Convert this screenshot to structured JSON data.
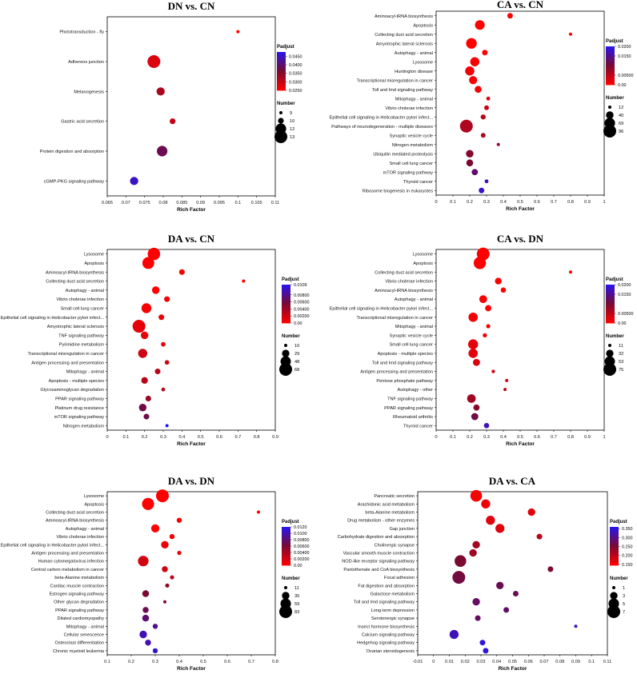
{
  "chart_data": [
    {
      "type": "scatter",
      "title": "DN vs. CN",
      "xlabel": "Rich Factor",
      "xlim": [
        0.065,
        0.11
      ],
      "xticks": [
        "0.065",
        "0.07",
        "0.075",
        "0.08",
        "0.085",
        "0.09",
        "0.095",
        "0.1",
        "0.105",
        "0.11"
      ],
      "categories": [
        "Phototransduction - fly",
        "Adherens junction",
        "Melanogenesis",
        "Gastric acid secretion",
        "Protein digestion and absorption",
        "cGMP-PKG signaling pathway"
      ],
      "x": [
        0.1,
        0.0775,
        0.0793,
        0.0825,
        0.0797,
        0.0722
      ],
      "size": [
        9,
        13,
        11,
        10,
        12,
        11
      ],
      "padj": [
        0.025,
        0.028,
        0.032,
        0.03,
        0.038,
        0.045
      ],
      "legend": {
        "color_title": "Padjust",
        "color_range": [
          0.025,
          0.0475
        ],
        "color_ticks": [
          "0.0450",
          "0.0400",
          "0.0350",
          "0.0300",
          "0.0250"
        ],
        "color_tick_values": [
          0.045,
          0.04,
          0.035,
          0.03,
          0.025
        ],
        "size_title": "Number",
        "size_values": [
          9,
          10,
          12,
          13
        ],
        "size_labels": [
          "9",
          "10",
          "12",
          "13"
        ]
      }
    },
    {
      "type": "scatter",
      "title": "CA vs. CN",
      "xlabel": "Rich Factor",
      "xlim": [
        0,
        1
      ],
      "xticks": [
        "0",
        "0.1",
        "0.2",
        "0.3",
        "0.4",
        "0.5",
        "0.6",
        "0.7",
        "0.8",
        "0.9",
        "1"
      ],
      "categories": [
        "Aminoacyl-tRNA biosynthesis",
        "Apoptosis",
        "Collecting duct acid secretion",
        "Amyotrophic lateral sclerosis",
        "Autophagy - animal",
        "Lysosome",
        "Huntington disease",
        "Transcriptional misregulation in cancer",
        "Toll and Imd signaling pathway",
        "Mitophagy - animal",
        "Vibrio cholerae infection",
        "Epithelial cell signaling in Helicobacter pylori infect...",
        "Pathways of neurodegeneration - multiple diseases",
        "Synaptic vesicle cycle",
        "Nitrogen metabolism",
        "Ubiquitin mediated proteolysis",
        "Small cell lung cancer",
        "mTOR signaling pathway",
        "Thyroid cancer",
        "Ribosome biogenesis in eukaryotes"
      ],
      "x": [
        0.44,
        0.26,
        0.8,
        0.21,
        0.29,
        0.23,
        0.2,
        0.22,
        0.25,
        0.31,
        0.3,
        0.28,
        0.18,
        0.28,
        0.37,
        0.2,
        0.2,
        0.23,
        0.3,
        0.27
      ],
      "size": [
        25,
        60,
        12,
        70,
        25,
        55,
        55,
        45,
        35,
        15,
        20,
        22,
        96,
        20,
        12,
        40,
        35,
        30,
        15,
        25
      ],
      "padj": [
        0.0,
        0.0,
        0.0,
        0.0,
        0.0,
        0.0005,
        0.001,
        0.0005,
        0.001,
        0.003,
        0.004,
        0.005,
        0.006,
        0.006,
        0.008,
        0.009,
        0.01,
        0.013,
        0.017,
        0.018
      ],
      "legend": {
        "color_title": "Padjust",
        "color_range": [
          0,
          0.02
        ],
        "color_ticks": [
          "0.0200",
          "0.0150",
          "0.00500",
          "0.00"
        ],
        "color_tick_values": [
          0.02,
          0.015,
          0.005,
          0.0
        ],
        "size_title": "Number",
        "size_values": [
          12,
          40,
          69,
          96
        ],
        "size_labels": [
          "12",
          "40",
          "69",
          "96"
        ]
      }
    },
    {
      "type": "scatter",
      "title": "DA vs. CN",
      "xlabel": "Rich Factor",
      "xlim": [
        0,
        0.9
      ],
      "xticks": [
        "0",
        "0.1",
        "0.2",
        "0.3",
        "0.4",
        "0.5",
        "0.6",
        "0.7",
        "0.8",
        "0.9"
      ],
      "categories": [
        "Lysosome",
        "Apoptosis",
        "Aminoacyl-tRNA biosynthesis",
        "Collecting duct acid secretion",
        "Autophagy - animal",
        "Vibrio cholerae infection",
        "Small cell lung cancer",
        "Epithelial cell signaling in Helicobacter pylori infect...",
        "Amyotrophic lateral sclerosis",
        "TNF signaling pathway",
        "Pyrimidine metabolism",
        "Transcriptional misregulation in cancer",
        "Antigen processing and presentation",
        "Mitophagy - animal",
        "Apoptosis - multiple species",
        "Glycosaminoglycan degradation",
        "PPAR signaling pathway",
        "Platinum drug resistance",
        "mTOR signaling pathway",
        "Nitrogen metabolism"
      ],
      "x": [
        0.25,
        0.22,
        0.4,
        0.73,
        0.26,
        0.32,
        0.21,
        0.29,
        0.17,
        0.2,
        0.3,
        0.19,
        0.32,
        0.27,
        0.2,
        0.3,
        0.22,
        0.19,
        0.21,
        0.32
      ],
      "size": [
        65,
        60,
        20,
        10,
        30,
        20,
        45,
        20,
        68,
        30,
        15,
        40,
        15,
        20,
        25,
        12,
        20,
        30,
        20,
        10
      ],
      "padj": [
        0.0,
        0.0,
        0.0,
        0.0,
        0.0,
        0.0005,
        0.0005,
        0.001,
        0.001,
        0.001,
        0.001,
        0.002,
        0.002,
        0.003,
        0.003,
        0.003,
        0.004,
        0.006,
        0.006,
        0.011
      ],
      "legend": {
        "color_title": "Padjust",
        "color_range": [
          0,
          0.0109
        ],
        "color_ticks": [
          "0.0109",
          "0.00800",
          "0.00600",
          "0.00400",
          "0.00200",
          "0.00"
        ],
        "color_tick_values": [
          0.0109,
          0.008,
          0.006,
          0.004,
          0.002,
          0.0
        ],
        "size_title": "Number",
        "size_values": [
          10,
          29,
          48,
          68
        ],
        "size_labels": [
          "10",
          "29",
          "48",
          "68"
        ]
      }
    },
    {
      "type": "scatter",
      "title": "CA vs. DN",
      "xlabel": "Rich Factor",
      "xlim": [
        0,
        1
      ],
      "xticks": [
        "0",
        "0.1",
        "0.2",
        "0.3",
        "0.4",
        "0.5",
        "0.6",
        "0.7",
        "0.8",
        "0.9",
        "1"
      ],
      "categories": [
        "Lysosome",
        "Apoptosis",
        "Collecting duct acid secretion",
        "Vibrio cholerae infection",
        "Aminoacyl-tRNA biosynthesis",
        "Autophagy - animal",
        "Epithelial cell signaling in Helicobacter pylori infect...",
        "Transcriptional misregulation in cancer",
        "Mitophagy - animal",
        "Synaptic vesicle cycle",
        "Small cell lung cancer",
        "Apoptosis - multiple species",
        "Toll and Imd signaling pathway",
        "Antigen processing and presentation",
        "Pentose phosphate pathway",
        "Autophagy - other",
        "TNF signaling pathway",
        "PPAR signaling pathway",
        "Rheumatoid arthritis",
        "Thyroid cancer"
      ],
      "x": [
        0.28,
        0.26,
        0.8,
        0.37,
        0.4,
        0.28,
        0.31,
        0.22,
        0.31,
        0.29,
        0.22,
        0.22,
        0.24,
        0.34,
        0.42,
        0.41,
        0.21,
        0.24,
        0.23,
        0.3
      ],
      "size": [
        75,
        70,
        11,
        28,
        20,
        35,
        25,
        45,
        15,
        15,
        50,
        45,
        30,
        12,
        11,
        11,
        40,
        25,
        30,
        20
      ],
      "padj": [
        0.0,
        0.0,
        0.0,
        0.0,
        0.0,
        0.0005,
        0.0005,
        0.001,
        0.001,
        0.001,
        0.002,
        0.002,
        0.003,
        0.004,
        0.004,
        0.005,
        0.007,
        0.009,
        0.011,
        0.017
      ],
      "legend": {
        "color_title": "Padjust",
        "color_range": [
          0,
          0.02
        ],
        "color_ticks": [
          "0.0200",
          "0.0150",
          "0.00500",
          "0.00"
        ],
        "color_tick_values": [
          0.02,
          0.015,
          0.005,
          0.0
        ],
        "size_title": "Number",
        "size_values": [
          11,
          32,
          53,
          75
        ],
        "size_labels": [
          "11",
          "32",
          "53",
          "75"
        ]
      }
    },
    {
      "type": "scatter",
      "title": "DA vs. DN",
      "xlabel": "Rich Factor",
      "xlim": [
        0.1,
        0.8
      ],
      "xticks": [
        "0.1",
        "0.2",
        "0.3",
        "0.4",
        "0.5",
        "0.6",
        "0.7",
        "0.8"
      ],
      "categories": [
        "Lysosome",
        "Apoptosis",
        "Collecting duct acid secretion",
        "Aminoacyl-tRNA biosynthesis",
        "Autophagy - animal",
        "Vibrio cholerae infection",
        "Epithelial cell signaling in Helicobacter pylori infect...",
        "Antigen processing and presentation",
        "Human cytomegalovirus infection",
        "Central carbon metabolism in cancer",
        "beta-Alanine metabolism",
        "Cardiac muscle contraction",
        "Estrogen signaling pathway",
        "Other glycan degradation",
        "PPAR signaling pathway",
        "Dilated cardiomyopathy",
        "Mitophagy - animal",
        "Cellular senescence",
        "Osteoclast differentiation",
        "Chronic myeloid leukemia"
      ],
      "x": [
        0.33,
        0.27,
        0.73,
        0.4,
        0.3,
        0.37,
        0.34,
        0.4,
        0.25,
        0.34,
        0.37,
        0.35,
        0.26,
        0.34,
        0.26,
        0.26,
        0.3,
        0.25,
        0.27,
        0.3
      ],
      "size": [
        83,
        75,
        11,
        20,
        40,
        20,
        35,
        15,
        60,
        25,
        15,
        15,
        30,
        11,
        25,
        30,
        20,
        35,
        25,
        20
      ],
      "padj": [
        0.0,
        0.0,
        0.0,
        0.0,
        0.0,
        0.0005,
        0.001,
        0.001,
        0.002,
        0.002,
        0.003,
        0.005,
        0.006,
        0.006,
        0.007,
        0.008,
        0.009,
        0.01,
        0.01,
        0.011
      ],
      "legend": {
        "color_title": "Padjust",
        "color_range": [
          0,
          0.012
        ],
        "color_ticks": [
          "0.0120",
          "0.0100",
          "0.00800",
          "0.00600",
          "0.00400",
          "0.00200",
          "0.00"
        ],
        "color_tick_values": [
          0.012,
          0.01,
          0.008,
          0.006,
          0.004,
          0.002,
          0.0
        ],
        "size_title": "Number",
        "size_values": [
          11,
          35,
          59,
          83
        ],
        "size_labels": [
          "11",
          "35",
          "59",
          "83"
        ]
      }
    },
    {
      "type": "scatter",
      "title": "DA vs. CA",
      "xlabel": "Rich Factor",
      "xlim": [
        -0.01,
        0.11
      ],
      "xticks": [
        "-0.01",
        "0",
        "0.01",
        "0.02",
        "0.03",
        "0.04",
        "0.05",
        "0.06",
        "0.07",
        "0.08",
        "0.09",
        "0.1",
        "0.11"
      ],
      "categories": [
        "Pancreatic secretion",
        "Arachidonic acid metabolism",
        "beta-Alanine metabolism",
        "Drug metabolism - other enzymes",
        "Gap junction",
        "Carbohydrate digestion and absorption",
        "Cholinergic synapse",
        "Vascular smooth muscle contraction",
        "NOD-like receptor signaling pathway",
        "Pantothenate and CoA biosynthesis",
        "Focal adhesion",
        "Fat digestion and absorption",
        "Galactose metabolism",
        "Toll and Imd signaling pathway",
        "Long-term depression",
        "Serotonergic synapse",
        "Insect hormone biosynthesis",
        "Calcium signaling pathway",
        "Hedgehog signaling pathway",
        "Ovarian steroidogenesis"
      ],
      "x": [
        0.027,
        0.033,
        0.062,
        0.036,
        0.042,
        0.067,
        0.027,
        0.025,
        0.017,
        0.074,
        0.016,
        0.042,
        0.052,
        0.027,
        0.046,
        0.028,
        0.09,
        0.013,
        0.031,
        0.033
      ],
      "size": [
        6,
        4,
        3,
        4,
        4,
        2,
        3,
        3,
        6,
        2,
        7,
        3,
        2,
        3,
        2,
        2,
        1,
        4,
        2,
        2
      ],
      "padj": [
        0.15,
        0.16,
        0.17,
        0.17,
        0.17,
        0.2,
        0.22,
        0.22,
        0.25,
        0.25,
        0.26,
        0.27,
        0.27,
        0.28,
        0.28,
        0.28,
        0.33,
        0.33,
        0.35,
        0.35
      ],
      "legend": {
        "color_title": "Padjust",
        "color_range": [
          0.145,
          0.36
        ],
        "color_ticks": [
          "0.350",
          "0.300",
          "0.250",
          "0.200",
          "0.150"
        ],
        "color_tick_values": [
          0.35,
          0.3,
          0.25,
          0.2,
          0.15
        ],
        "size_title": "Number",
        "size_values": [
          1,
          3,
          5,
          7
        ],
        "size_labels": [
          "1",
          "3",
          "5",
          "7"
        ]
      }
    }
  ]
}
